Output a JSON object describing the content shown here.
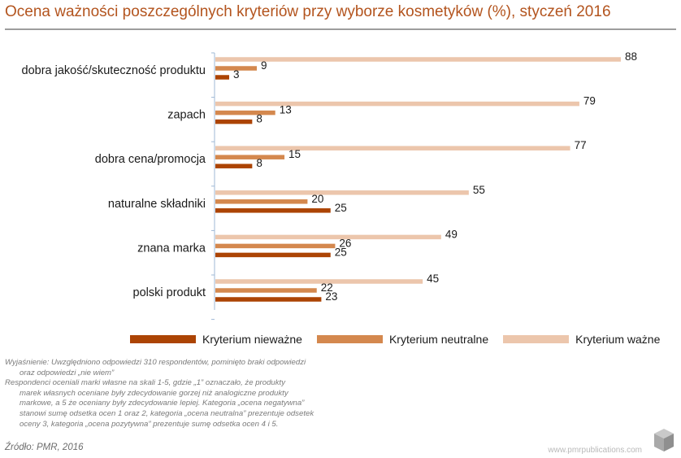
{
  "title": "Ocena ważności poszczególnych kryteriów przy wyborze kosmetyków (%), styczeń 2016",
  "chart_data": {
    "type": "bar",
    "orientation": "horizontal",
    "title": "Ocena ważności poszczególnych kryteriów przy wyborze kosmetyków (%), styczeń 2016",
    "xlabel": "",
    "ylabel": "",
    "xlim": [
      0,
      100
    ],
    "categories": [
      "dobra jakość/skuteczność  produktu",
      "zapach",
      "dobra cena/promocja",
      "naturalne składniki",
      "znana marka",
      "polski produkt"
    ],
    "series": [
      {
        "name": "Kryterium ważne",
        "color": "#ecc6ac",
        "values": [
          88,
          79,
          77,
          55,
          49,
          45
        ]
      },
      {
        "name": "Kryterium neutralne",
        "color": "#d4884e",
        "values": [
          9,
          13,
          15,
          20,
          26,
          22
        ]
      },
      {
        "name": "Kryterium nieważne",
        "color": "#ac4404",
        "values": [
          3,
          8,
          8,
          25,
          25,
          23
        ]
      }
    ],
    "legend": [
      {
        "name": "Kryterium nieważne",
        "color": "#ac4404"
      },
      {
        "name": "Kryterium neutralne",
        "color": "#d4884e"
      },
      {
        "name": "Kryterium ważne",
        "color": "#ecc6ac"
      }
    ],
    "legend_position": "bottom"
  },
  "note": {
    "lines": [
      "Wyjaśnienie: Uwzględniono odpowiedzi 310 respondentów, pominięto braki odpowiedzi",
      "oraz odpowiedzi „nie wiem”",
      "Respondenci oceniali marki własne na skali 1-5, gdzie „1” oznaczało, że produkty",
      "marek własnych oceniane były zdecydowanie gorzej niż analogiczne produkty",
      "markowe, a 5 że oceniany były zdecydowanie lepiej. Kategoria „ocena negatywna”",
      "stanowi sumę odsetka ocen 1 oraz 2, kategoria „ocena neutralna” prezentuje odsetek",
      "oceny 3, kategoria „ocena pozytywna” prezentuje sumę odsetka ocen 4 i 5."
    ]
  },
  "source": "Źródło: PMR, 2016",
  "website": "www.pmrpublications.com"
}
